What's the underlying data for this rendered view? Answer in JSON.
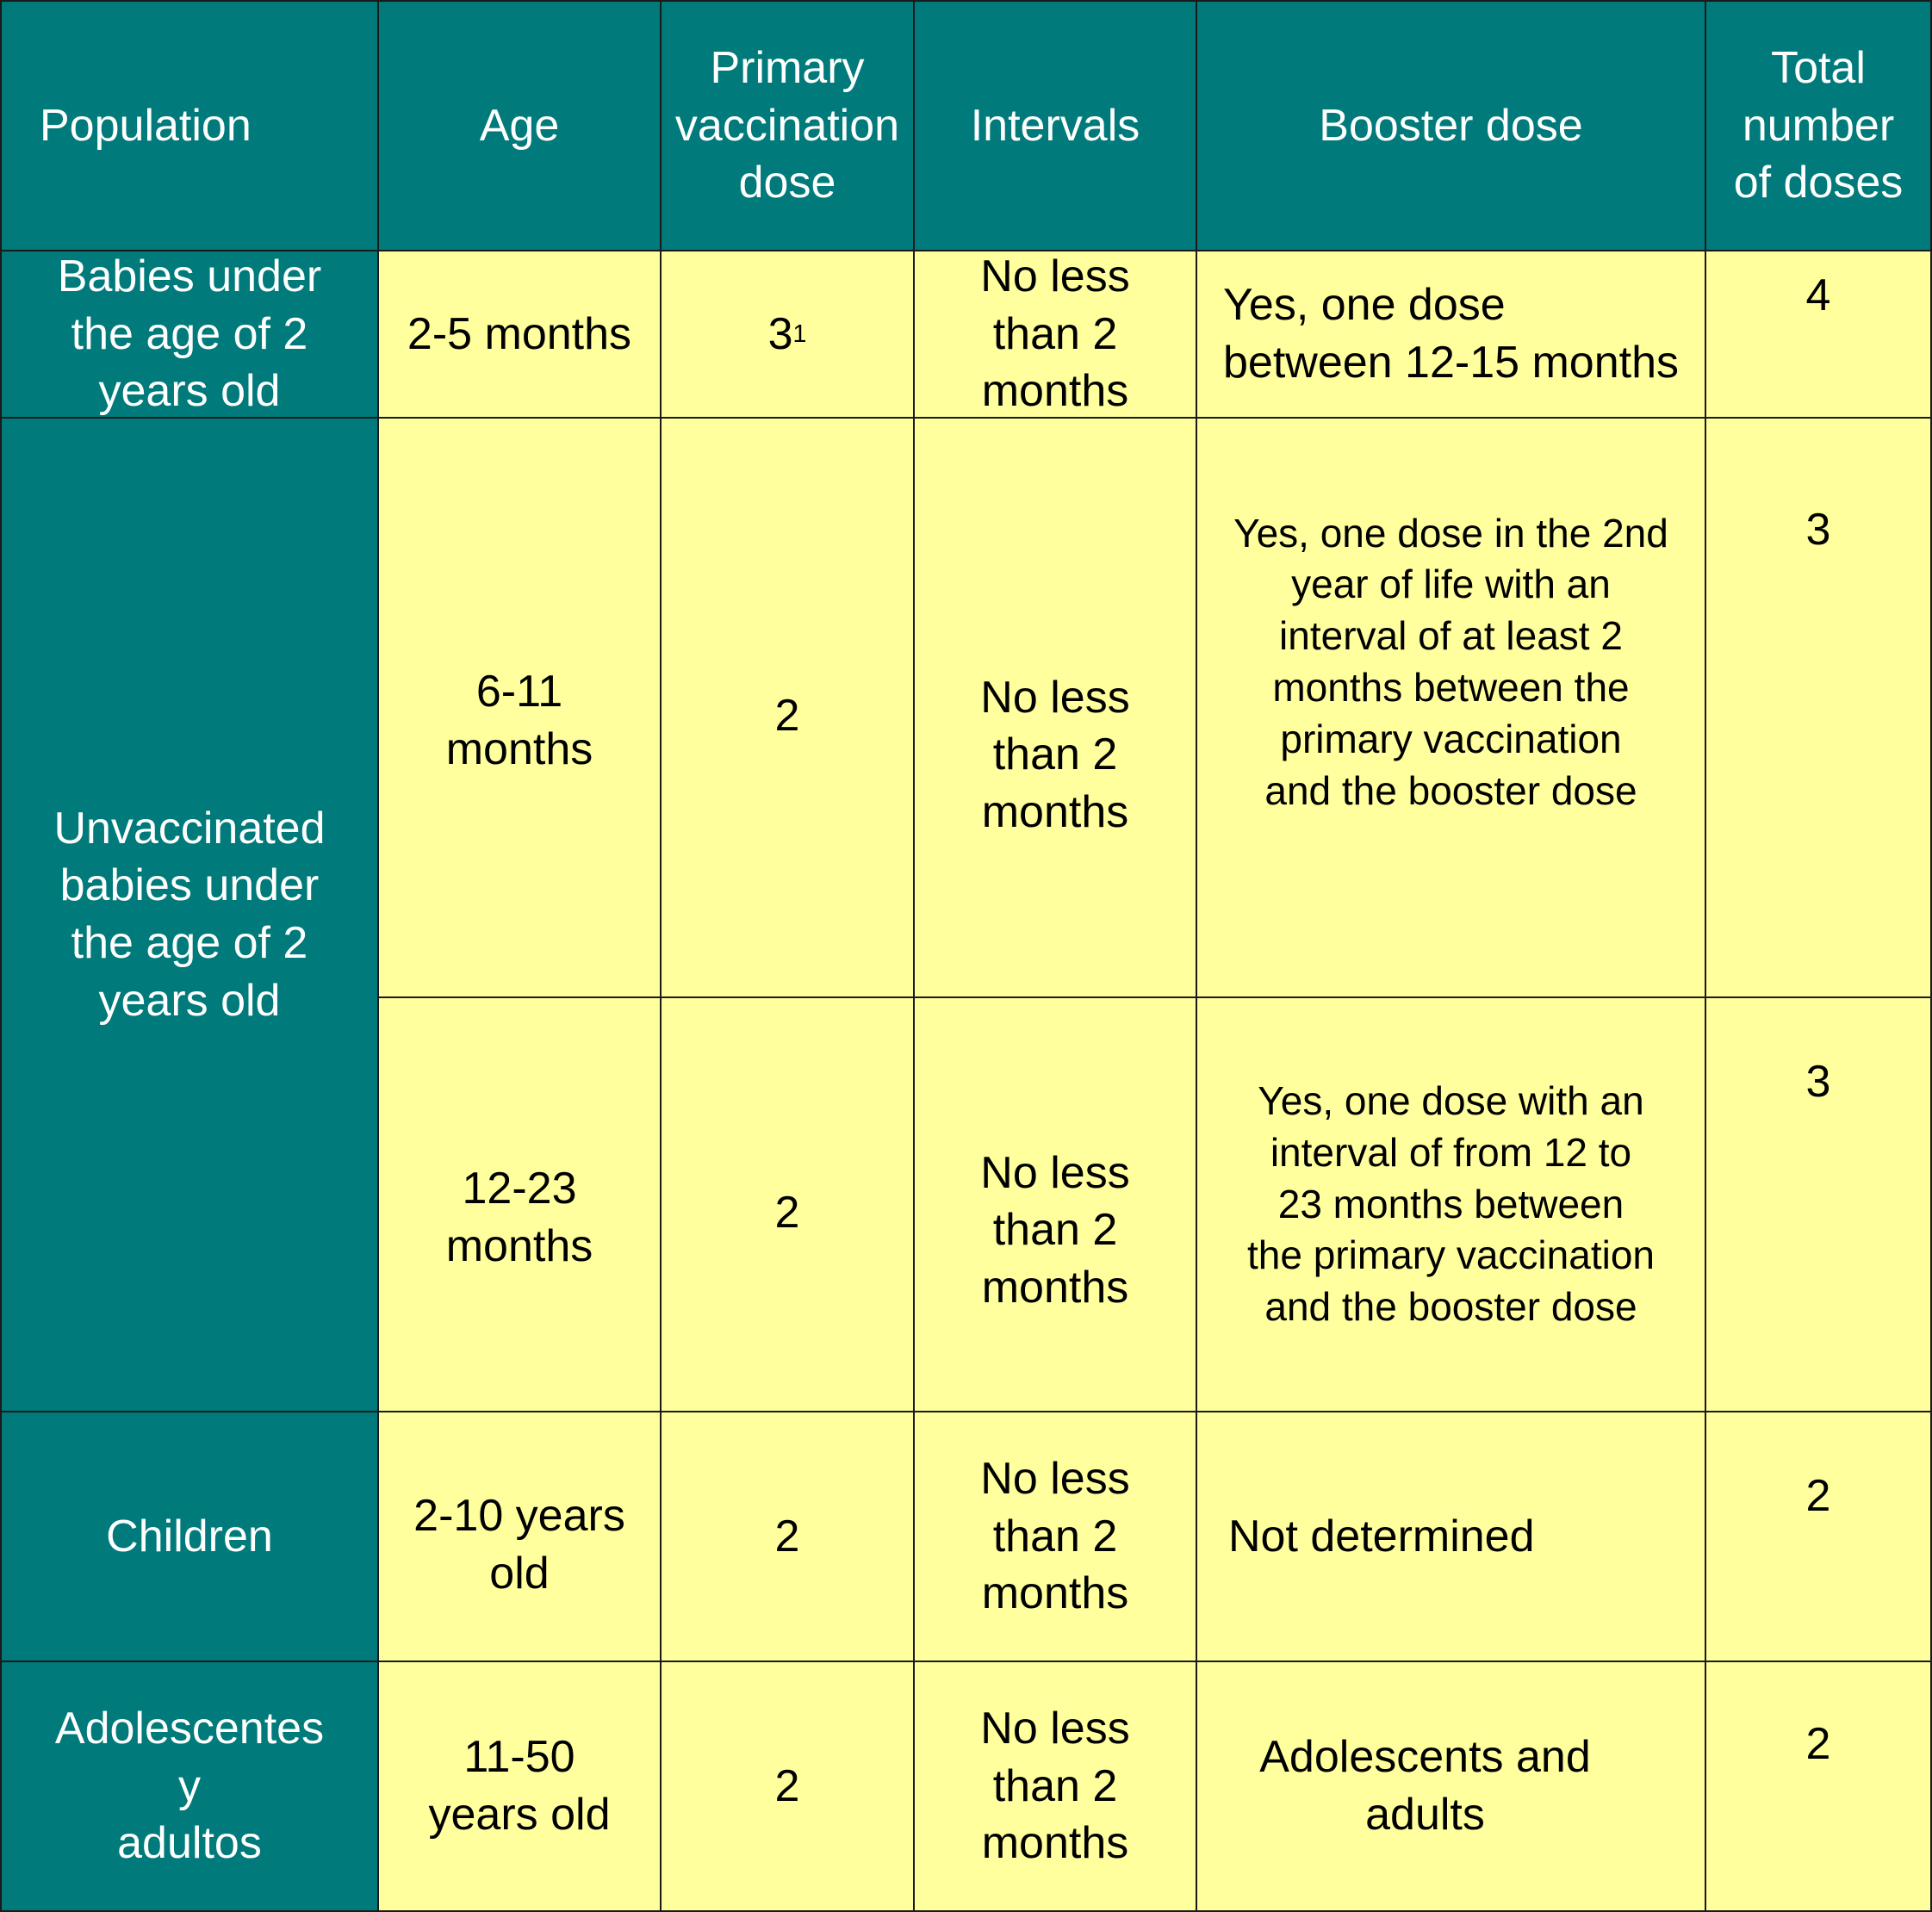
{
  "colors": {
    "header_bg": "#007a7a",
    "body_bg": "#ffff9d",
    "grid": "#1a1a1a"
  },
  "headers": [
    "Population",
    "Age",
    "Primary\nvaccination\ndose",
    "Intervals",
    "Booster dose",
    "Total\nnumber\nof doses"
  ],
  "rows": [
    {
      "population": "Babies under\nthe age of 2\nyears old",
      "age": "2-5 months",
      "primary_dose": "3",
      "primary_dose_footnote": "1",
      "intervals": "No less\nthan 2\nmonths",
      "booster": "Yes, one dose\nbetween 12-15 months",
      "total": "4"
    },
    {
      "population": "Unvaccinated\nbabies under\nthe age of 2\nyears old",
      "age": "6-11\nmonths",
      "primary_dose": "2",
      "intervals": "No less\nthan 2\nmonths",
      "booster": "Yes, one dose in the 2nd\nyear of life with an\ninterval of at least 2\nmonths between the\nprimary vaccination\nand the booster dose",
      "total": "3"
    },
    {
      "age": "12-23\nmonths",
      "primary_dose": "2",
      "intervals": "No less\nthan 2\nmonths",
      "booster": "Yes, one dose with an\ninterval of from 12 to\n23 months between\nthe primary vaccination\nand the booster dose",
      "total": "3"
    },
    {
      "population": "Children",
      "age": "2-10 years\nold",
      "primary_dose": "2",
      "intervals": "No less\nthan 2\nmonths",
      "booster": "Not determined",
      "total": "2"
    },
    {
      "population": "Adolescentes\ny\nadultos",
      "age": "11-50\nyears old",
      "primary_dose": "2",
      "intervals": "No less\nthan 2\nmonths",
      "booster": "Adolescents and\nadults",
      "total": "2"
    }
  ]
}
